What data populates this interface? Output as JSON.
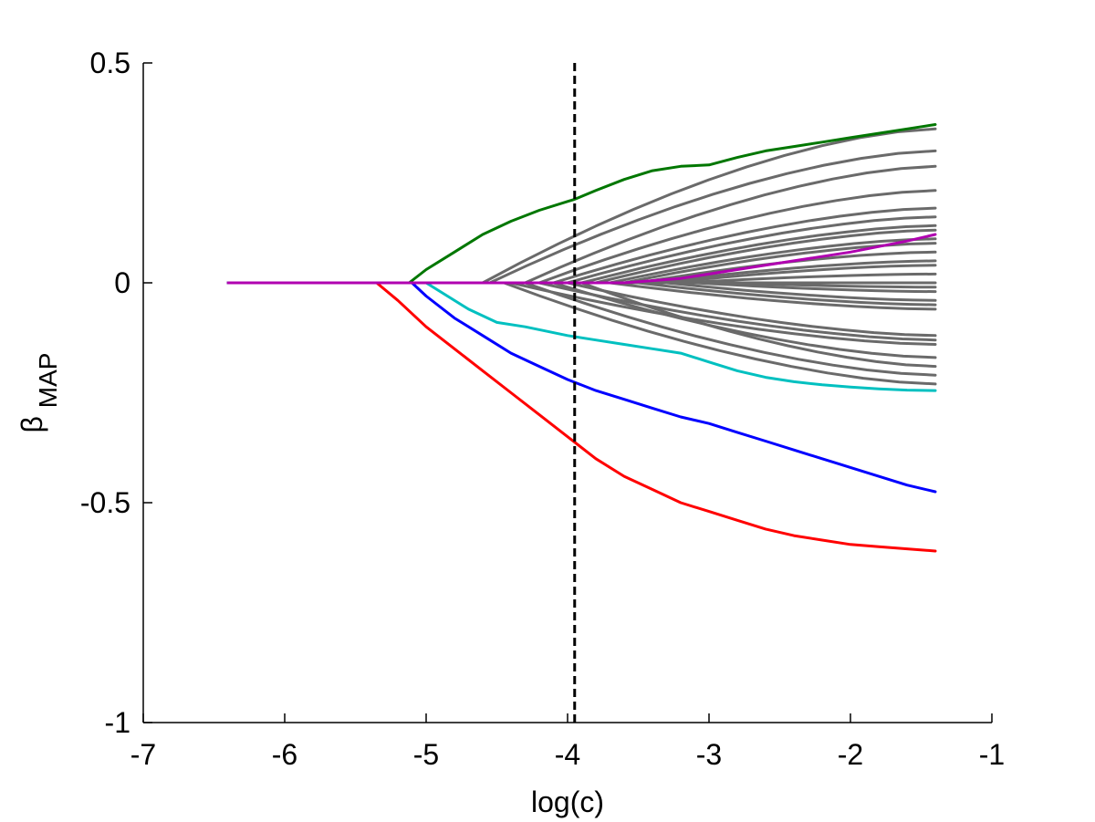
{
  "chart_data": {
    "type": "line",
    "title": "",
    "xlabel": "log(c)",
    "ylabel": "β",
    "ylabel_sub": "MAP",
    "xlim": [
      -7,
      -1
    ],
    "ylim": [
      -1,
      0.5
    ],
    "xticks": [
      -7,
      -6,
      -5,
      -4,
      -3,
      -2,
      -1
    ],
    "yticks": [
      -1,
      -0.5,
      0,
      0.5
    ],
    "xtick_labels": [
      "-7",
      "-6",
      "-5",
      "-4",
      "-3",
      "-2",
      "-1"
    ],
    "ytick_labels": [
      "-1",
      "-0.5",
      "0",
      "0.5"
    ],
    "grid": false,
    "vline": {
      "x": -3.95,
      "style": "dashed",
      "color": "#000000"
    },
    "highlighted_series": [
      {
        "color": "#007700",
        "x": [
          -6.4,
          -5.12,
          -5.0,
          -4.8,
          -4.6,
          -4.4,
          -4.2,
          -4.0,
          -3.95,
          -3.8,
          -3.6,
          -3.4,
          -3.2,
          -3.0,
          -2.8,
          -2.6,
          -2.4,
          -2.2,
          -2.0,
          -1.8,
          -1.6,
          -1.4
        ],
        "values": [
          0,
          0,
          0.03,
          0.07,
          0.11,
          0.14,
          0.165,
          0.185,
          0.19,
          0.21,
          0.235,
          0.255,
          0.265,
          0.268,
          0.285,
          0.3,
          0.31,
          0.32,
          0.33,
          0.34,
          0.35,
          0.36
        ]
      },
      {
        "color": "#ff0000",
        "x": [
          -6.4,
          -5.35,
          -5.2,
          -5.0,
          -4.8,
          -4.6,
          -4.4,
          -4.2,
          -4.0,
          -3.8,
          -3.6,
          -3.4,
          -3.2,
          -3.0,
          -2.8,
          -2.6,
          -2.4,
          -2.2,
          -2.0,
          -1.8,
          -1.6,
          -1.4
        ],
        "values": [
          0,
          0,
          -0.04,
          -0.1,
          -0.15,
          -0.2,
          -0.25,
          -0.3,
          -0.35,
          -0.4,
          -0.44,
          -0.47,
          -0.5,
          -0.52,
          -0.54,
          -0.56,
          -0.575,
          -0.585,
          -0.595,
          -0.6,
          -0.605,
          -0.61
        ]
      },
      {
        "color": "#0000ff",
        "x": [
          -6.4,
          -5.1,
          -5.0,
          -4.8,
          -4.6,
          -4.4,
          -4.2,
          -4.0,
          -3.8,
          -3.6,
          -3.4,
          -3.2,
          -3.0,
          -2.8,
          -2.6,
          -2.4,
          -2.2,
          -2.0,
          -1.8,
          -1.6,
          -1.4
        ],
        "values": [
          0,
          0,
          -0.03,
          -0.08,
          -0.12,
          -0.16,
          -0.19,
          -0.22,
          -0.245,
          -0.265,
          -0.285,
          -0.305,
          -0.32,
          -0.34,
          -0.36,
          -0.38,
          -0.4,
          -0.42,
          -0.44,
          -0.46,
          -0.475
        ]
      },
      {
        "color": "#00c0c0",
        "x": [
          -6.4,
          -5.0,
          -4.9,
          -4.7,
          -4.5,
          -4.3,
          -4.0,
          -3.8,
          -3.6,
          -3.4,
          -3.2,
          -3.0,
          -2.8,
          -2.6,
          -2.4,
          -2.2,
          -2.0,
          -1.8,
          -1.6,
          -1.4
        ],
        "values": [
          0,
          0,
          -0.02,
          -0.06,
          -0.09,
          -0.1,
          -0.12,
          -0.13,
          -0.14,
          -0.15,
          -0.16,
          -0.18,
          -0.2,
          -0.215,
          -0.225,
          -0.232,
          -0.237,
          -0.241,
          -0.244,
          -0.245
        ]
      },
      {
        "color": "#b000b0",
        "x": [
          -6.4,
          -3.6,
          -3.2,
          -2.8,
          -2.4,
          -2.0,
          -1.6,
          -1.4
        ],
        "values": [
          0,
          0,
          0.01,
          0.03,
          0.05,
          0.07,
          0.095,
          0.11
        ]
      }
    ],
    "gray_color": "#6a6a6a",
    "gray_series": [
      {
        "start": -4.6,
        "end": 0.35
      },
      {
        "start": -4.55,
        "end": 0.3
      },
      {
        "start": -4.3,
        "end": 0.265
      },
      {
        "start": -4.2,
        "end": 0.21
      },
      {
        "start": -4.1,
        "end": 0.17
      },
      {
        "start": -4.0,
        "end": 0.15
      },
      {
        "start": -3.9,
        "end": 0.13
      },
      {
        "start": -3.8,
        "end": 0.12
      },
      {
        "start": -3.7,
        "end": 0.1
      },
      {
        "start": -3.6,
        "end": 0.09
      },
      {
        "start": -3.5,
        "end": 0.07
      },
      {
        "start": -3.4,
        "end": 0.05
      },
      {
        "start": -3.3,
        "end": 0.04
      },
      {
        "start": -3.2,
        "end": 0.02
      },
      {
        "start": -3.0,
        "end": 0.0
      },
      {
        "start": -2.9,
        "end": -0.01
      },
      {
        "start": -3.1,
        "end": -0.02
      },
      {
        "start": -3.3,
        "end": -0.04
      },
      {
        "start": -3.5,
        "end": -0.05
      },
      {
        "start": -3.7,
        "end": -0.06
      },
      {
        "start": -4.0,
        "end": -0.12
      },
      {
        "start": -4.2,
        "end": -0.13
      },
      {
        "start": -4.4,
        "end": -0.14
      },
      {
        "start": -4.1,
        "end": -0.17
      },
      {
        "start": -3.9,
        "end": -0.19
      },
      {
        "start": -4.3,
        "end": -0.21
      },
      {
        "start": -4.45,
        "end": -0.23
      }
    ]
  }
}
